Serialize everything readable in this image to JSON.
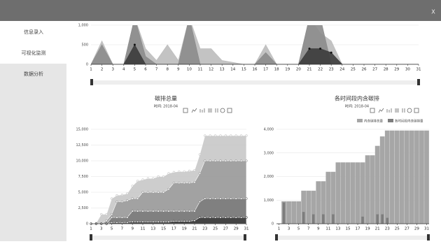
{
  "header": {
    "close": "X"
  },
  "nav": [
    "信息录入",
    "可视化监测",
    "数据分析"
  ],
  "chart_data": [
    {
      "type": "area",
      "x": [
        1,
        2,
        3,
        4,
        5,
        6,
        7,
        8,
        9,
        10,
        11,
        12,
        13,
        14,
        15,
        16,
        17,
        18,
        19,
        20,
        21,
        22,
        23,
        24,
        25,
        26,
        27,
        28,
        29,
        30,
        31
      ],
      "xlim": [
        1,
        31
      ],
      "ylim": [
        0,
        1000
      ],
      "yticks": [
        0,
        500,
        {
          "value": 1000,
          "label": "1,000"
        }
      ],
      "series": [
        {
          "color": "#bdbdbd",
          "values": [
            0,
            600,
            0,
            0,
            1200,
            400,
            100,
            500,
            100,
            1200,
            400,
            400,
            100,
            50,
            0,
            0,
            500,
            0,
            0,
            0,
            1200,
            800,
            600,
            0,
            0,
            0,
            0,
            0,
            0,
            0,
            0
          ]
        },
        {
          "color": "#8c8c8c",
          "values": [
            0,
            500,
            0,
            0,
            1200,
            200,
            0,
            0,
            0,
            1200,
            0,
            0,
            0,
            0,
            0,
            0,
            300,
            0,
            0,
            0,
            1200,
            1200,
            0,
            0,
            0,
            0,
            0,
            0,
            0,
            0,
            0
          ]
        },
        {
          "color": "#3c3c3c",
          "values": [
            0,
            0,
            0,
            0,
            500,
            0,
            0,
            0,
            0,
            0,
            0,
            0,
            0,
            0,
            0,
            0,
            0,
            0,
            0,
            0,
            400,
            400,
            300,
            0,
            0,
            0,
            0,
            0,
            0,
            0,
            0
          ]
        }
      ]
    },
    {
      "type": "line",
      "title": "碳排总量",
      "subtitle": "时间: 2018-04",
      "x": [
        1,
        2,
        3,
        4,
        5,
        6,
        7,
        8,
        9,
        10,
        11,
        12,
        13,
        14,
        15,
        16,
        17,
        18,
        19,
        20,
        21,
        22,
        23,
        24,
        25,
        26,
        27,
        28,
        29,
        30,
        31
      ],
      "xlim": [
        1,
        31
      ],
      "xticks": [
        1,
        3,
        5,
        7,
        9,
        11,
        13,
        15,
        17,
        19,
        21,
        23,
        25,
        27,
        29,
        31
      ],
      "ylim": [
        0,
        15000
      ],
      "yticks": [
        0,
        {
          "value": 2500,
          "label": "2,500"
        },
        {
          "value": 5000,
          "label": "5,000"
        },
        {
          "value": 7500,
          "label": "7,500"
        },
        {
          "value": 10000,
          "label": "10,000"
        },
        {
          "value": 12500,
          "label": "12,500"
        },
        {
          "value": 15000,
          "label": "15,000"
        }
      ],
      "series": [
        {
          "color": "#c4c4c4",
          "values": [
            0,
            100,
            1500,
            1500,
            4000,
            4500,
            4600,
            4800,
            6000,
            6800,
            7000,
            7200,
            7200,
            7500,
            7500,
            8000,
            8200,
            8300,
            8300,
            8400,
            8500,
            11000,
            14000,
            14000,
            14000,
            14000,
            14000,
            14000,
            14000,
            14000,
            14000
          ]
        },
        {
          "color": "#9a9a9a",
          "values": [
            0,
            0,
            0,
            500,
            1500,
            3500,
            3500,
            3700,
            4000,
            4000,
            5000,
            5000,
            5000,
            5000,
            5000,
            5500,
            6500,
            6500,
            6500,
            6500,
            6600,
            8000,
            10000,
            10000,
            10000,
            10000,
            10000,
            10000,
            10000,
            10000,
            10000
          ]
        },
        {
          "color": "#7a7a7a",
          "values": [
            0,
            0,
            0,
            0,
            1000,
            1000,
            1000,
            1000,
            2000,
            2000,
            2000,
            2000,
            2000,
            2000,
            2000,
            2000,
            2000,
            2000,
            2000,
            2000,
            2000,
            3500,
            4000,
            4000,
            4000,
            4000,
            4000,
            4000,
            4000,
            4000,
            4000
          ]
        },
        {
          "color": "#3a3a3a",
          "values": [
            0,
            0,
            0,
            0,
            200,
            200,
            200,
            200,
            300,
            300,
            300,
            300,
            300,
            300,
            300,
            300,
            400,
            400,
            400,
            400,
            500,
            1000,
            1000,
            1000,
            1000,
            1000,
            1000,
            1000,
            1000,
            1000,
            1000
          ]
        }
      ]
    },
    {
      "type": "bar",
      "title": "各时间段内含碳排",
      "subtitle": "时间: 2018-04",
      "x": [
        1,
        2,
        3,
        4,
        5,
        6,
        7,
        8,
        9,
        10,
        11,
        12,
        13,
        14,
        15,
        16,
        17,
        18,
        19,
        20,
        21,
        22,
        23,
        24,
        25,
        26,
        27,
        28,
        29,
        30,
        31
      ],
      "xlim": [
        0.5,
        31.5
      ],
      "xticks": [
        1,
        3,
        5,
        7,
        9,
        11,
        13,
        15,
        17,
        19,
        21,
        23,
        25,
        27,
        29,
        31
      ],
      "ylim": [
        0,
        4000
      ],
      "yticks": [
        0,
        {
          "value": 1000,
          "label": "1,000"
        },
        {
          "value": 2000,
          "label": "2,000"
        },
        {
          "value": 3000,
          "label": "3,000"
        },
        {
          "value": 4000,
          "label": "4,000"
        }
      ],
      "legend": "top-right",
      "series": [
        {
          "name": "内含碳排总量",
          "color": "#a6a6a6",
          "values": [
            0,
            950,
            950,
            950,
            950,
            1400,
            1400,
            1400,
            1800,
            1800,
            2200,
            2200,
            2600,
            2600,
            2600,
            2600,
            2600,
            2600,
            2900,
            2900,
            3300,
            3700,
            3950,
            3950,
            3950,
            3950,
            3950,
            3950,
            3950,
            3950,
            3950
          ]
        },
        {
          "name": "各时间段内含碳排量",
          "color": "#7d7d7d",
          "values": [
            0,
            900,
            0,
            0,
            0,
            500,
            0,
            400,
            0,
            400,
            0,
            400,
            0,
            0,
            0,
            0,
            0,
            300,
            0,
            0,
            400,
            400,
            250,
            0,
            0,
            0,
            0,
            0,
            0,
            0,
            0
          ]
        }
      ]
    }
  ]
}
